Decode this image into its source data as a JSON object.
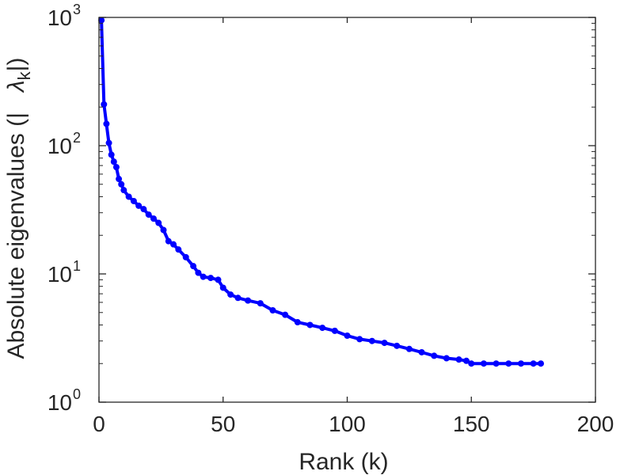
{
  "chart_data": {
    "type": "line",
    "xlabel": "Rank (k)",
    "ylabel_prefix": "Absolute eigenvalues (|",
    "ylabel_symbol": "λ",
    "ylabel_subscript": "k",
    "ylabel_suffix": "|)",
    "y_scale": "log",
    "xlim": [
      0,
      200
    ],
    "ylim": [
      1,
      1000
    ],
    "grid": false,
    "x_ticks": [
      {
        "value": 0,
        "label": "0"
      },
      {
        "value": 50,
        "label": "50"
      },
      {
        "value": 100,
        "label": "100"
      },
      {
        "value": 150,
        "label": "150"
      },
      {
        "value": 200,
        "label": "200"
      }
    ],
    "y_ticks": [
      {
        "value": 1,
        "base": "10",
        "exp": "0"
      },
      {
        "value": 10,
        "base": "10",
        "exp": "1"
      },
      {
        "value": 100,
        "base": "10",
        "exp": "2"
      },
      {
        "value": 1000,
        "base": "10",
        "exp": "3"
      }
    ],
    "series": [
      {
        "color": "#0000ff",
        "x": [
          1,
          2,
          3,
          4,
          5,
          6,
          7,
          8,
          9,
          10,
          12,
          14,
          16,
          18,
          20,
          22,
          24,
          26,
          28,
          30,
          32,
          35,
          38,
          40,
          42,
          45,
          48,
          50,
          53,
          56,
          60,
          65,
          70,
          75,
          80,
          85,
          90,
          95,
          100,
          105,
          110,
          115,
          120,
          125,
          130,
          135,
          140,
          145,
          148,
          150,
          155,
          160,
          165,
          170,
          175,
          178
        ],
        "y": [
          950,
          210,
          148,
          105,
          85,
          75,
          68,
          55,
          50,
          45,
          40,
          37,
          34,
          32,
          29,
          27,
          25,
          22,
          18,
          17,
          15.5,
          13.5,
          11.5,
          10.2,
          9.5,
          9.3,
          9.0,
          7.8,
          6.9,
          6.5,
          6.2,
          5.9,
          5.2,
          4.8,
          4.2,
          4.0,
          3.8,
          3.6,
          3.3,
          3.1,
          3.0,
          2.9,
          2.75,
          2.6,
          2.45,
          2.3,
          2.2,
          2.15,
          2.1,
          2.0,
          2.0,
          2.0,
          2.0,
          2.0,
          2.0,
          2.0
        ]
      }
    ]
  }
}
